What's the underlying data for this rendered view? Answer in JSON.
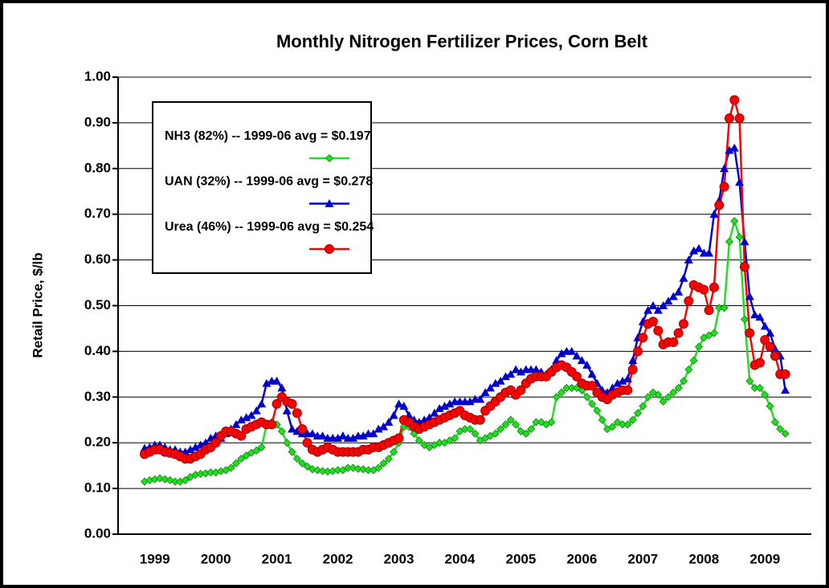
{
  "chart_data": {
    "type": "line",
    "title": "Monthly Nitrogen Fertilizer Prices, Corn Belt",
    "y_label": "Retail Price, $/lb",
    "categories": [
      null,
      null,
      "1999",
      null,
      null,
      null,
      null,
      null,
      null,
      null,
      null,
      null,
      null,
      null,
      "2000",
      null,
      null,
      null,
      null,
      null,
      null,
      null,
      null,
      null,
      null,
      null,
      "2001",
      null,
      null,
      null,
      null,
      null,
      null,
      null,
      null,
      null,
      null,
      null,
      "2002",
      null,
      null,
      null,
      null,
      null,
      null,
      null,
      null,
      null,
      null,
      null,
      "2003",
      null,
      null,
      null,
      null,
      null,
      null,
      null,
      null,
      null,
      null,
      null,
      "2004",
      null,
      null,
      null,
      null,
      null,
      null,
      null,
      null,
      null,
      null,
      null,
      "2005",
      null,
      null,
      null,
      null,
      null,
      null,
      null,
      null,
      null,
      null,
      null,
      "2006",
      null,
      null,
      null,
      null,
      null,
      null,
      null,
      null,
      null,
      null,
      null,
      "2007",
      null,
      null,
      null,
      null,
      null,
      null,
      null,
      null,
      null,
      null,
      null,
      "2008",
      null,
      null,
      null,
      null,
      null,
      null,
      null,
      null,
      null,
      null,
      null,
      "2009",
      null,
      null,
      null,
      null
    ],
    "series": [
      {
        "name": "NH3 (82%) -- 1999-06 avg = $0.197",
        "color": "#22dd22",
        "marker": "diamond",
        "values": [
          0.115,
          0.118,
          0.12,
          0.122,
          0.12,
          0.118,
          0.115,
          0.115,
          0.118,
          0.125,
          0.13,
          0.132,
          0.133,
          0.135,
          0.135,
          0.138,
          0.14,
          0.145,
          0.155,
          0.165,
          0.172,
          0.178,
          0.183,
          0.19,
          0.24,
          0.245,
          0.24,
          0.225,
          0.2,
          0.18,
          0.165,
          0.155,
          0.148,
          0.142,
          0.14,
          0.138,
          0.137,
          0.138,
          0.14,
          0.14,
          0.145,
          0.145,
          0.143,
          0.142,
          0.14,
          0.14,
          0.145,
          0.155,
          0.165,
          0.18,
          0.2,
          0.235,
          0.235,
          0.22,
          0.205,
          0.195,
          0.19,
          0.195,
          0.2,
          0.2,
          0.205,
          0.21,
          0.225,
          0.23,
          0.23,
          0.22,
          0.205,
          0.21,
          0.215,
          0.22,
          0.23,
          0.24,
          0.25,
          0.24,
          0.225,
          0.22,
          0.23,
          0.245,
          0.245,
          0.24,
          0.245,
          0.3,
          0.31,
          0.32,
          0.32,
          0.32,
          0.315,
          0.3,
          0.285,
          0.27,
          0.25,
          0.23,
          0.235,
          0.245,
          0.24,
          0.24,
          0.25,
          0.265,
          0.28,
          0.3,
          0.31,
          0.305,
          0.29,
          0.3,
          0.31,
          0.32,
          0.335,
          0.36,
          0.38,
          0.41,
          0.43,
          0.435,
          0.44,
          0.495,
          0.495,
          0.64,
          0.685,
          0.65,
          0.47,
          0.335,
          0.32,
          0.32,
          0.305,
          0.28,
          0.245,
          0.23,
          0.22
        ]
      },
      {
        "name": "UAN (32%) -- 1999-06 avg = $0.278",
        "color": "#0000cc",
        "marker": "triangle",
        "values": [
          0.188,
          0.19,
          0.195,
          0.195,
          0.19,
          0.185,
          0.185,
          0.18,
          0.18,
          0.185,
          0.19,
          0.195,
          0.2,
          0.21,
          0.215,
          0.21,
          0.22,
          0.23,
          0.24,
          0.25,
          0.255,
          0.26,
          0.27,
          0.285,
          0.33,
          0.335,
          0.335,
          0.32,
          0.27,
          0.23,
          0.225,
          0.22,
          0.22,
          0.22,
          0.215,
          0.215,
          0.21,
          0.21,
          0.21,
          0.215,
          0.21,
          0.21,
          0.215,
          0.215,
          0.22,
          0.22,
          0.23,
          0.235,
          0.245,
          0.26,
          0.285,
          0.28,
          0.26,
          0.25,
          0.245,
          0.25,
          0.255,
          0.265,
          0.275,
          0.28,
          0.285,
          0.29,
          0.29,
          0.29,
          0.29,
          0.295,
          0.295,
          0.31,
          0.32,
          0.33,
          0.335,
          0.345,
          0.35,
          0.36,
          0.355,
          0.36,
          0.36,
          0.36,
          0.355,
          0.35,
          0.36,
          0.38,
          0.395,
          0.4,
          0.4,
          0.39,
          0.38,
          0.37,
          0.35,
          0.33,
          0.315,
          0.31,
          0.32,
          0.33,
          0.335,
          0.34,
          0.38,
          0.43,
          0.465,
          0.49,
          0.5,
          0.49,
          0.5,
          0.51,
          0.52,
          0.53,
          0.56,
          0.6,
          0.62,
          0.625,
          0.615,
          0.615,
          0.7,
          0.73,
          0.8,
          0.84,
          0.845,
          0.77,
          0.64,
          0.52,
          0.48,
          0.475,
          0.455,
          0.44,
          0.405,
          0.39,
          0.315
        ]
      },
      {
        "name": "Urea (46%) -- 1999-06 avg = $0.254",
        "color": "#ff0000",
        "marker": "circle",
        "values": [
          0.175,
          0.18,
          0.185,
          0.185,
          0.18,
          0.178,
          0.175,
          0.17,
          0.165,
          0.165,
          0.17,
          0.175,
          0.185,
          0.19,
          0.2,
          0.215,
          0.225,
          0.225,
          0.22,
          0.215,
          0.23,
          0.235,
          0.24,
          0.245,
          0.24,
          0.24,
          0.285,
          0.3,
          0.29,
          0.285,
          0.265,
          0.23,
          0.2,
          0.185,
          0.18,
          0.185,
          0.19,
          0.185,
          0.18,
          0.18,
          0.18,
          0.18,
          0.18,
          0.185,
          0.185,
          0.19,
          0.19,
          0.195,
          0.2,
          0.205,
          0.21,
          0.25,
          0.245,
          0.235,
          0.23,
          0.235,
          0.24,
          0.245,
          0.25,
          0.255,
          0.26,
          0.265,
          0.27,
          0.26,
          0.255,
          0.25,
          0.25,
          0.27,
          0.28,
          0.29,
          0.3,
          0.31,
          0.315,
          0.305,
          0.315,
          0.33,
          0.34,
          0.345,
          0.345,
          0.345,
          0.355,
          0.365,
          0.37,
          0.365,
          0.355,
          0.345,
          0.33,
          0.325,
          0.325,
          0.31,
          0.3,
          0.295,
          0.305,
          0.31,
          0.315,
          0.315,
          0.36,
          0.4,
          0.43,
          0.46,
          0.465,
          0.445,
          0.415,
          0.42,
          0.42,
          0.44,
          0.46,
          0.51,
          0.545,
          0.54,
          0.535,
          0.49,
          0.54,
          0.72,
          0.76,
          0.91,
          0.95,
          0.91,
          0.585,
          0.44,
          0.37,
          0.375,
          0.425,
          0.41,
          0.39,
          0.35,
          0.35
        ]
      }
    ],
    "ylim": [
      0,
      1
    ],
    "yticks": [
      {
        "value": 0,
        "label": "0.00"
      },
      {
        "value": 0.1,
        "label": "0.10"
      },
      {
        "value": 0.2,
        "label": "0.20"
      },
      {
        "value": 0.3,
        "label": "0.30"
      },
      {
        "value": 0.4,
        "label": "0.40"
      },
      {
        "value": 0.5,
        "label": "0.50"
      },
      {
        "value": 0.6,
        "label": "0.60"
      },
      {
        "value": 0.7,
        "label": "0.70"
      },
      {
        "value": 0.8,
        "label": "0.80"
      },
      {
        "value": 0.9,
        "label": "0.90"
      },
      {
        "value": 1,
        "label": "1.00"
      }
    ],
    "grid": true,
    "legend": "upper left"
  }
}
